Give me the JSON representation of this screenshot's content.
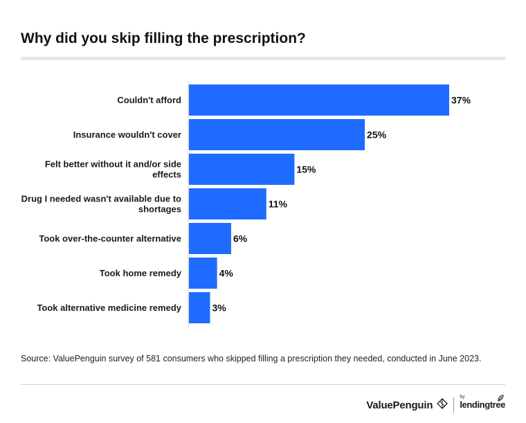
{
  "header": {
    "title": "Why did you skip filling the prescription?"
  },
  "chart_data": {
    "type": "bar",
    "orientation": "horizontal",
    "title": "Why did you skip filling the prescription?",
    "xlabel": "",
    "ylabel": "",
    "categories": [
      [
        "Couldn't afford"
      ],
      [
        "Insurance wouldn't cover"
      ],
      [
        "Felt better without it and/or side",
        "effects"
      ],
      [
        "Drug I needed wasn't available due to",
        "shortages"
      ],
      [
        "Took over-the-counter alternative"
      ],
      [
        "Took home remedy"
      ],
      [
        "Took alternative medicine remedy"
      ]
    ],
    "values": [
      37,
      25,
      15,
      11,
      6,
      4,
      3
    ],
    "value_labels": [
      "37%",
      "25%",
      "15%",
      "11%",
      "6%",
      "4%",
      "3%"
    ],
    "xlim": [
      0,
      40
    ],
    "bar_color": "#1f6bff",
    "grid": false,
    "legend": "none"
  },
  "footer": {
    "source": "Source: ValuePenguin survey of 581 consumers who skipped filling a prescription they needed, conducted in June 2023.",
    "brand_primary": "ValuePenguin",
    "brand_by": "by",
    "brand_secondary": "lendingtree",
    "brand_primary_icon": "valuepenguin-diamond-icon",
    "brand_secondary_icon": "lendingtree-leaf-icon"
  }
}
